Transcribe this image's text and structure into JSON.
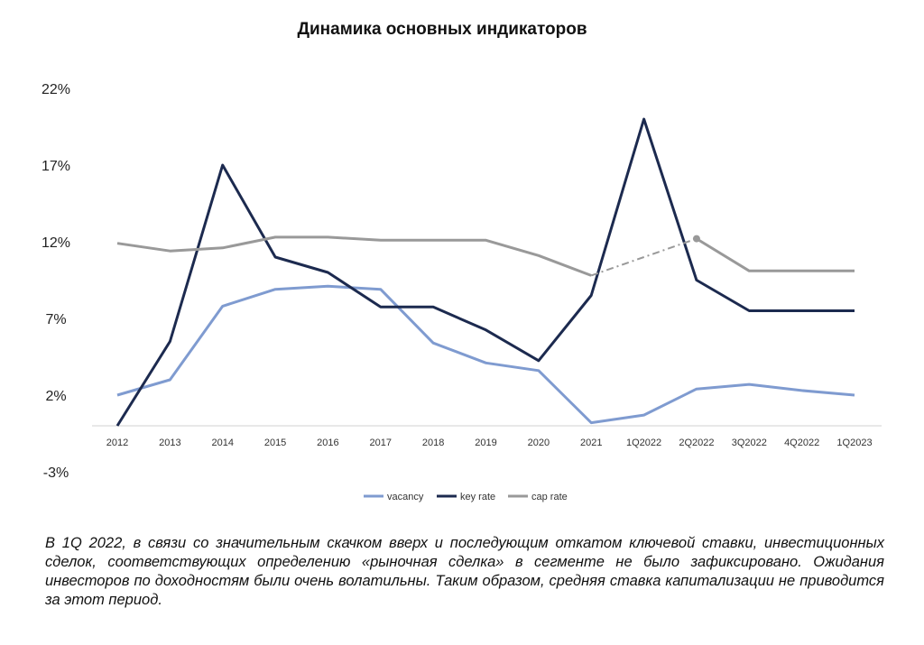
{
  "chart_data": {
    "type": "line",
    "title": "Динамика основных индикаторов",
    "categories": [
      "2012",
      "2013",
      "2014",
      "2015",
      "2016",
      "2017",
      "2018",
      "2019",
      "2020",
      "2021",
      "1Q2022",
      "2Q2022",
      "3Q2022",
      "4Q2022",
      "1Q2023"
    ],
    "y_ticks": [
      "-3%",
      "2%",
      "7%",
      "12%",
      "17%",
      "22%"
    ],
    "ylim": [
      -3,
      22
    ],
    "grid": false,
    "legend_position": "bottom",
    "series": [
      {
        "name": "vacancy",
        "color": "#7f9bd0",
        "values": [
          2.0,
          3.0,
          7.8,
          8.9,
          9.1,
          8.9,
          5.4,
          4.1,
          3.6,
          0.2,
          0.7,
          2.4,
          2.7,
          2.3,
          2.0
        ]
      },
      {
        "name": "key rate",
        "color": "#1c2a4f",
        "values": [
          0.0,
          5.5,
          17.0,
          11.0,
          10.0,
          7.75,
          7.75,
          6.25,
          4.25,
          8.5,
          20.0,
          9.5,
          7.5,
          7.5,
          7.5
        ]
      },
      {
        "name": "cap rate",
        "color": "#999999",
        "values": [
          11.9,
          11.4,
          11.6,
          12.3,
          12.3,
          12.1,
          12.1,
          12.1,
          11.1,
          9.8,
          11.0,
          12.2,
          10.1,
          10.1,
          10.1
        ],
        "dashed_segment": [
          9,
          11
        ]
      }
    ]
  },
  "note": "В 1Q 2022, в связи со значительным скачком вверх и последующим откатом ключевой ставки, инвестиционных сделок, соответствующих определению «рыночная сделка» в сегменте не было зафиксировано. Ожидания инвесторов по доходностям были очень волатильны. Таким образом, средняя ставка капитализации не приводится за этот период."
}
